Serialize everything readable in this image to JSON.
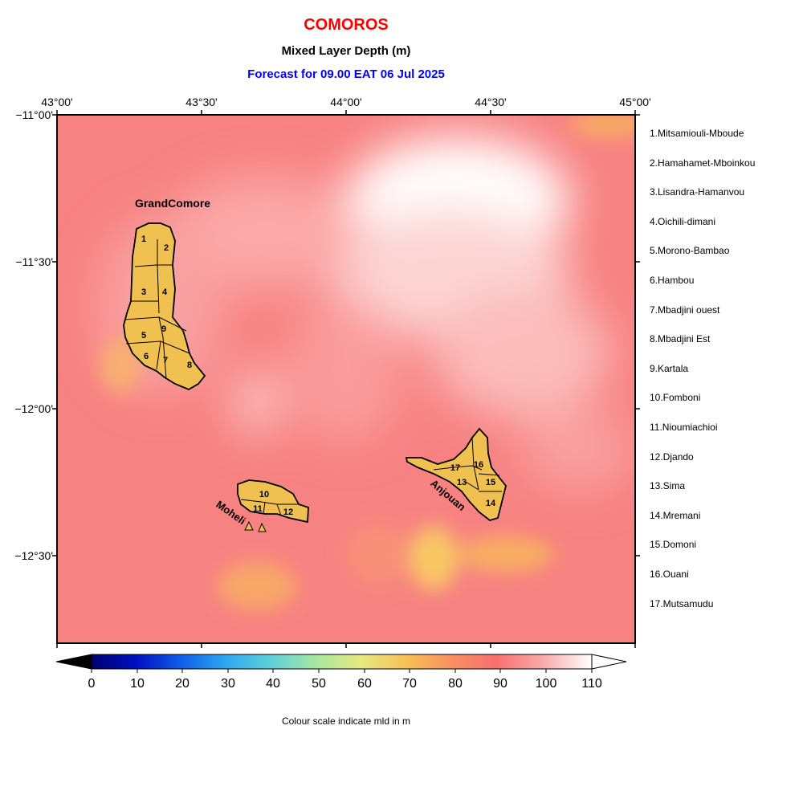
{
  "title": "COMOROS",
  "subtitle": "Mixed Layer Depth (m)",
  "forecast": "Forecast for  09.00 EAT 06 Jul 2025",
  "lon_ticks": [
    "43°00'",
    "43°30'",
    "44°00'",
    "44°30'",
    "45°00'"
  ],
  "lat_ticks": [
    "−11°00'",
    "−11°30'",
    "−12°00'",
    "−12°30'"
  ],
  "islands": {
    "grand_comore": "GrandComore",
    "moheli": "Moheli",
    "anjouan": "Anjouan"
  },
  "region_numbers": [
    "1",
    "2",
    "3",
    "4",
    "5",
    "6",
    "7",
    "8",
    "9",
    "10",
    "11",
    "12",
    "13",
    "14",
    "15",
    "16",
    "17"
  ],
  "regions": [
    "1.Mitsamiouli-Mboude",
    "2.Hamahamet-Mboinkou",
    "3.Lisandra-Hamanvou",
    "4.Oichili-dimani",
    "5.Morono-Bambao",
    "6.Hambou",
    "7.Mbadjini ouest",
    "8.Mbadjini Est",
    "9.Kartala",
    "10.Fomboni",
    "11.Nioumiachioi",
    "12.Djando",
    "13.Sima",
    "14.Mremani",
    "15.Domoni",
    "16.Ouani",
    "17.Mutsamudu"
  ],
  "colorbar": {
    "labels": [
      "0",
      "10",
      "20",
      "30",
      "40",
      "50",
      "60",
      "70",
      "80",
      "90",
      "100",
      "110"
    ],
    "note": "Colour scale indicate mld in m"
  },
  "colors": {
    "background_field": "#f78282",
    "land": "#f0c050",
    "title": "#ff0000",
    "forecast": "#0000ff"
  }
}
